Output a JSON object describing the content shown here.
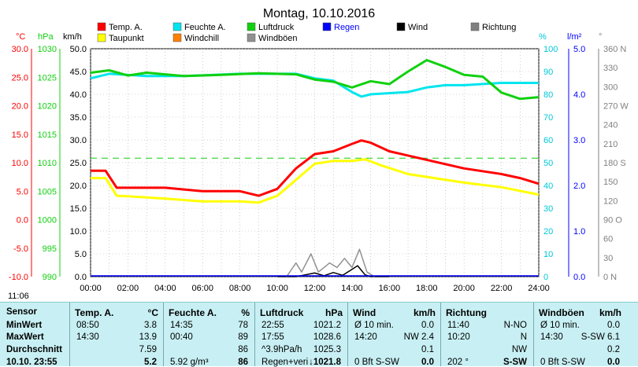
{
  "title": "Montag, 10.10.2016",
  "axis_units": {
    "degc": "°C",
    "hpa": "hPa",
    "kmh": "km/h",
    "pct": "%",
    "lm2": "l/m²",
    "deg": "°"
  },
  "legend": [
    {
      "label": "Temp. A.",
      "color": "#ff0000"
    },
    {
      "label": "Feuchte A.",
      "color": "#00e5ee"
    },
    {
      "label": "Luftdruck",
      "color": "#10d010"
    },
    {
      "label": "Regen",
      "color": "#0000ff"
    },
    {
      "label": "Wind",
      "color": "#000000"
    },
    {
      "label": "Richtung",
      "color": "#808080"
    },
    {
      "label": "Taupunkt",
      "color": "#ffff00"
    },
    {
      "label": "Windchill",
      "color": "#ff8000"
    },
    {
      "label": "Windböen",
      "color": "#909090"
    }
  ],
  "chart_data": {
    "type": "line",
    "title": "Montag, 10.10.2016",
    "x_ticks": [
      "00:00",
      "02:00",
      "04:00",
      "06:00",
      "08:00",
      "10:00",
      "12:00",
      "14:00",
      "16:00",
      "18:00",
      "20:00",
      "22:00",
      "24:00"
    ],
    "axes": {
      "temp_c": {
        "ticks": [
          "30.0",
          "25.0",
          "20.0",
          "15.0",
          "10.0",
          "5.0",
          "0.0",
          "-5.0",
          "-10.0"
        ],
        "range": [
          -10,
          30
        ]
      },
      "pressure_hpa": {
        "ticks": [
          "1030",
          "1025",
          "1020",
          "1015",
          "1010",
          "1005",
          "1000",
          "995",
          "990"
        ],
        "range": [
          990,
          1030
        ]
      },
      "wind_kmh": {
        "ticks": [
          "50.0",
          "45.0",
          "40.0",
          "35.0",
          "30.0",
          "25.0",
          "20.0",
          "15.0",
          "10.0",
          "5.0",
          "0.0"
        ],
        "range": [
          0,
          50
        ]
      },
      "humidity_pct": {
        "ticks": [
          "100",
          "90",
          "80",
          "70",
          "60",
          "50",
          "40",
          "30",
          "20",
          "10",
          "0"
        ],
        "range": [
          0,
          100
        ]
      },
      "rain_lm2": {
        "ticks": [
          "5.0",
          "4.0",
          "3.0",
          "2.0",
          "1.0",
          "0.0"
        ],
        "range": [
          0,
          5
        ]
      },
      "direction_deg": {
        "ticks": [
          "360 N",
          "330",
          "300",
          "270 W",
          "240",
          "210",
          "180 S",
          "150",
          "120",
          "90 O",
          "60",
          "30",
          "0 N"
        ],
        "range": [
          0,
          360
        ]
      }
    },
    "series": [
      {
        "name": "Temp. A.",
        "axis": "temp_c",
        "color": "#ff0000",
        "points": [
          [
            0,
            8.6
          ],
          [
            0.8,
            8.6
          ],
          [
            1.4,
            5.6
          ],
          [
            2,
            5.6
          ],
          [
            4,
            5.6
          ],
          [
            6,
            5.0
          ],
          [
            8,
            5.0
          ],
          [
            9,
            4.2
          ],
          [
            10,
            5.4
          ],
          [
            11,
            9
          ],
          [
            12,
            11.5
          ],
          [
            13,
            12
          ],
          [
            14,
            13.3
          ],
          [
            14.5,
            13.9
          ],
          [
            15,
            13.5
          ],
          [
            16,
            12
          ],
          [
            18,
            10.5
          ],
          [
            20,
            9
          ],
          [
            22,
            8
          ],
          [
            23,
            7.3
          ],
          [
            24,
            6.3
          ]
        ]
      },
      {
        "name": "Taupunkt",
        "axis": "temp_c",
        "color": "#ffff00",
        "points": [
          [
            0,
            7.3
          ],
          [
            0.8,
            7.3
          ],
          [
            1.4,
            4.2
          ],
          [
            2,
            4.1
          ],
          [
            4,
            3.7
          ],
          [
            6,
            3.2
          ],
          [
            8,
            3.2
          ],
          [
            9,
            3.0
          ],
          [
            10,
            4.2
          ],
          [
            11,
            7
          ],
          [
            12,
            9.8
          ],
          [
            13,
            10.3
          ],
          [
            14,
            10.3
          ],
          [
            14.7,
            10.6
          ],
          [
            15.5,
            9.6
          ],
          [
            17,
            8
          ],
          [
            18,
            7.5
          ],
          [
            20,
            6.5
          ],
          [
            22,
            5.7
          ],
          [
            24,
            4.4
          ]
        ]
      },
      {
        "name": "Feuchte A.",
        "axis": "humidity_pct",
        "color": "#00e5ee",
        "points": [
          [
            0,
            87
          ],
          [
            1,
            89
          ],
          [
            3,
            88
          ],
          [
            5,
            88
          ],
          [
            8,
            89
          ],
          [
            11,
            89
          ],
          [
            12,
            87
          ],
          [
            13,
            86
          ],
          [
            14,
            81
          ],
          [
            14.5,
            79
          ],
          [
            15,
            80
          ],
          [
            17,
            81
          ],
          [
            18,
            83
          ],
          [
            19,
            84
          ],
          [
            20,
            84
          ],
          [
            22,
            85
          ],
          [
            24,
            85
          ]
        ]
      },
      {
        "name": "Luftdruck",
        "axis": "pressure_hpa",
        "color": "#10d010",
        "points": [
          [
            0,
            1025.8
          ],
          [
            1,
            1026.2
          ],
          [
            2,
            1025.3
          ],
          [
            3,
            1025.8
          ],
          [
            5,
            1025.2
          ],
          [
            7,
            1025.4
          ],
          [
            9,
            1025.7
          ],
          [
            11,
            1025.5
          ],
          [
            12,
            1024.6
          ],
          [
            13,
            1024.2
          ],
          [
            14,
            1023.2
          ],
          [
            15,
            1024.3
          ],
          [
            16,
            1023.8
          ],
          [
            17,
            1026.0
          ],
          [
            18,
            1028.0
          ],
          [
            19,
            1026.8
          ],
          [
            20,
            1025.4
          ],
          [
            21,
            1025.1
          ],
          [
            22,
            1022.3
          ],
          [
            23,
            1021.2
          ],
          [
            24,
            1021.5
          ]
        ]
      },
      {
        "name": "Wind",
        "axis": "wind_kmh",
        "color": "#000000",
        "points": [
          [
            10,
            0
          ],
          [
            11,
            0
          ],
          [
            11.5,
            0.4
          ],
          [
            12,
            0.8
          ],
          [
            12.5,
            0.2
          ],
          [
            13,
            0.9
          ],
          [
            13.5,
            0.3
          ],
          [
            14,
            1.6
          ],
          [
            14.3,
            2.4
          ],
          [
            14.7,
            0.4
          ],
          [
            15,
            0
          ],
          [
            16,
            0
          ]
        ]
      },
      {
        "name": "Windböen",
        "axis": "wind_kmh",
        "color": "#909090",
        "points": [
          [
            10.5,
            0
          ],
          [
            11,
            3
          ],
          [
            11.3,
            1
          ],
          [
            11.8,
            5
          ],
          [
            12.2,
            1
          ],
          [
            12.8,
            3
          ],
          [
            13.2,
            2
          ],
          [
            13.6,
            4
          ],
          [
            14,
            2
          ],
          [
            14.4,
            6
          ],
          [
            14.8,
            1
          ],
          [
            15.2,
            0
          ]
        ]
      }
    ],
    "reference_lines": [
      {
        "axis": "temp_c",
        "value": 10.8,
        "style": "dashed",
        "color": "#10d010"
      }
    ],
    "grid": true
  },
  "bottom_bar": {
    "time": "11:06"
  },
  "table": {
    "row_labels": [
      "Sensor",
      "MinWert",
      "MaxWert",
      "Durchschnitt",
      "10.10. 23:55"
    ],
    "columns": [
      {
        "header": "Temp. A.",
        "unit": "°C",
        "rows": [
          [
            "08:50",
            "3.8"
          ],
          [
            "14:30",
            "13.9"
          ],
          [
            "",
            "7.59"
          ],
          [
            "",
            "5.2"
          ]
        ]
      },
      {
        "header": "Feuchte A.",
        "unit": "%",
        "rows": [
          [
            "14:35",
            "78"
          ],
          [
            "00:40",
            "89"
          ],
          [
            "",
            "86"
          ],
          [
            "5.92 g/m³",
            "86"
          ]
        ]
      },
      {
        "header": "Luftdruck",
        "unit": "hPa",
        "rows": [
          [
            "22:55",
            "1021.2"
          ],
          [
            "17:55",
            "1028.6"
          ],
          [
            "^3.9hPa/h",
            "1025.3"
          ],
          [
            "Regen+veri",
            "↓1021.8"
          ]
        ]
      },
      {
        "header": "Wind",
        "unit": "km/h",
        "rows": [
          [
            "Ø 10 min.",
            "0.0"
          ],
          [
            "14:20",
            "NW 2.4"
          ],
          [
            "",
            "0.1"
          ],
          [
            "0 Bft S-SW",
            "0.0"
          ]
        ]
      },
      {
        "header": "Richtung",
        "unit": "",
        "rows": [
          [
            "11:40",
            "N-NO"
          ],
          [
            "10:20",
            "N"
          ],
          [
            "",
            "NW"
          ],
          [
            "202 °",
            "S-SW"
          ]
        ]
      },
      {
        "header": "Windböen",
        "unit": "km/h",
        "rows": [
          [
            "Ø 10 min.",
            "0.0"
          ],
          [
            "14:30",
            "S-SW 6.1"
          ],
          [
            "",
            "0.2"
          ],
          [
            "0 Bft S-SW",
            "0.0"
          ]
        ]
      }
    ]
  }
}
